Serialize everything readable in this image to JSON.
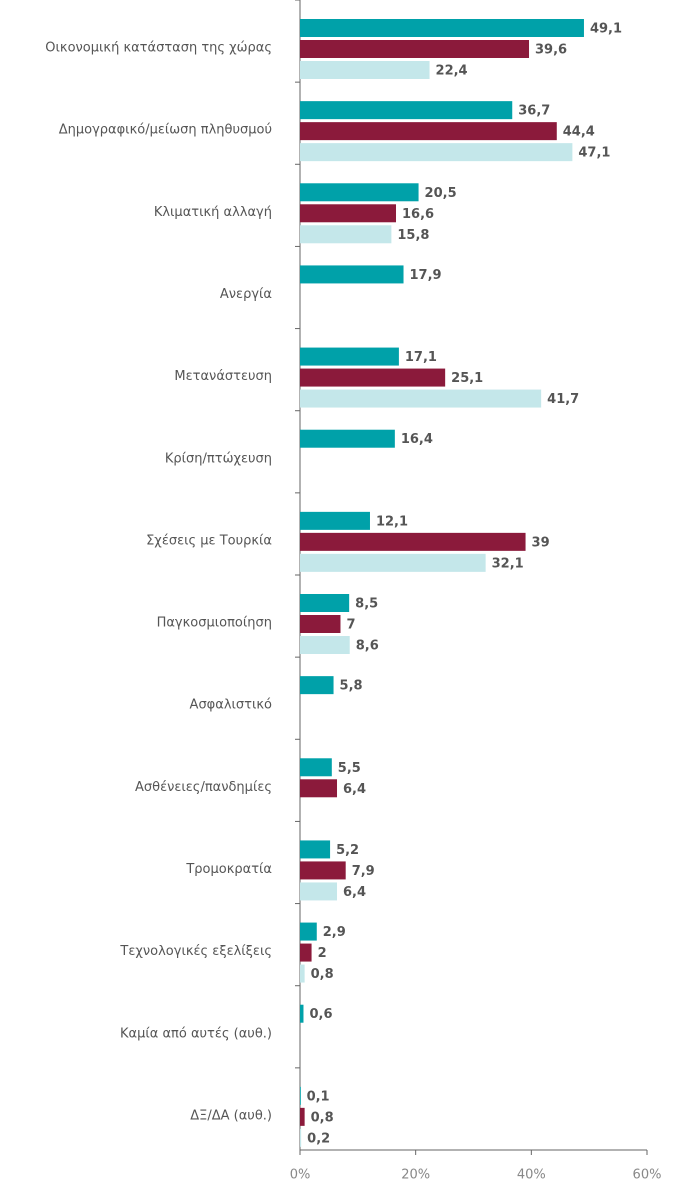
{
  "chart_data": {
    "type": "hbar",
    "categories": [
      "Οικονομική κατάσταση της χώρας",
      "Δημογραφικό/μείωση πληθυσμού",
      "Κλιματική αλλαγή",
      "Ανεργία",
      "Μετανάστευση",
      "Κρίση/πτώχευση",
      "Σχέσεις με Τουρκία",
      "Παγκοσμιοποίηση",
      "Ασφαλιστικό",
      "Ασθένειες/πανδημίες",
      "Τρομοκρατία",
      "Τεχνολογικές εξελίξεις",
      "Καμία από αυτές (αυθ.)",
      "ΔΞ/ΔΑ (αυθ.)"
    ],
    "series": [
      {
        "color": "#00a1a9",
        "values": [
          49.1,
          36.7,
          20.5,
          17.9,
          17.1,
          16.4,
          12.1,
          8.5,
          5.8,
          5.5,
          5.2,
          2.9,
          0.6,
          0.1
        ],
        "value_labels": [
          "49,1",
          "36,7",
          "20,5",
          "17,9",
          "17,1",
          "16,4",
          "12,1",
          "8,5",
          "5,8",
          "5,5",
          "5,2",
          "2,9",
          "0,6",
          "0,1"
        ]
      },
      {
        "color": "#8b1a3b",
        "values": [
          39.6,
          44.4,
          16.6,
          null,
          25.1,
          null,
          39,
          7,
          null,
          6.4,
          7.9,
          2,
          null,
          0.8
        ],
        "value_labels": [
          "39,6",
          "44,4",
          "16,6",
          null,
          "25,1",
          null,
          "39",
          "7",
          null,
          "6,4",
          "7,9",
          "2",
          null,
          "0,8"
        ]
      },
      {
        "color": "#c4e7ea",
        "values": [
          22.4,
          47.1,
          15.8,
          null,
          41.7,
          null,
          32.1,
          8.6,
          null,
          null,
          6.4,
          0.8,
          null,
          0.2
        ],
        "value_labels": [
          "22,4",
          "47,1",
          "15,8",
          null,
          "41,7",
          null,
          "32,1",
          "8,6",
          null,
          null,
          "6,4",
          "0,8",
          null,
          "0,2"
        ]
      }
    ],
    "xlim": [
      0,
      60
    ],
    "xticks": [
      {
        "value": 0,
        "label": "0%"
      },
      {
        "value": 20,
        "label": "20%"
      },
      {
        "value": 40,
        "label": "40%"
      },
      {
        "value": 60,
        "label": "60%"
      }
    ]
  }
}
